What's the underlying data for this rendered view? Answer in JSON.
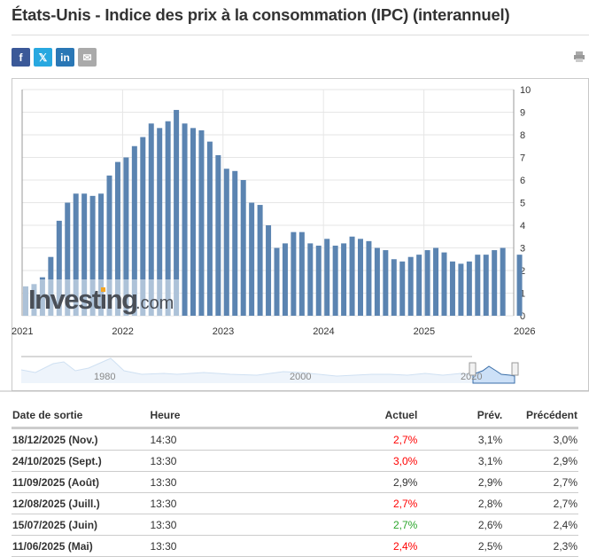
{
  "title": "États-Unis - Indice des prix à la consommation (IPC) (interannuel)",
  "share": [
    {
      "name": "facebook",
      "label": "f",
      "color": "#3b5998"
    },
    {
      "name": "twitter",
      "label": "𝕏",
      "color": "#28a8e0"
    },
    {
      "name": "linkedin",
      "label": "in",
      "color": "#2a77b5"
    },
    {
      "name": "email",
      "label": "✉",
      "color": "#aaaaaa"
    }
  ],
  "print_icon": "printer-icon",
  "chart_data": {
    "type": "bar",
    "bar_color": "#5b84b1",
    "ylim": [
      0,
      10
    ],
    "yticks": [
      "0",
      "1",
      "2",
      "3",
      "4",
      "5",
      "6",
      "7",
      "8",
      "9",
      "10"
    ],
    "xticks": [
      "2021",
      "2022",
      "2023",
      "2024",
      "2025",
      "2026"
    ],
    "grid": true,
    "watermark": "Investing.com",
    "x": [
      "2021-01",
      "2021-02",
      "2021-03",
      "2021-04",
      "2021-05",
      "2021-06",
      "2021-07",
      "2021-08",
      "2021-09",
      "2021-10",
      "2021-11",
      "2021-12",
      "2022-01",
      "2022-02",
      "2022-03",
      "2022-04",
      "2022-05",
      "2022-06",
      "2022-07",
      "2022-08",
      "2022-09",
      "2022-10",
      "2022-11",
      "2022-12",
      "2023-01",
      "2023-02",
      "2023-03",
      "2023-04",
      "2023-05",
      "2023-06",
      "2023-07",
      "2023-08",
      "2023-09",
      "2023-10",
      "2023-11",
      "2023-12",
      "2024-01",
      "2024-02",
      "2024-03",
      "2024-04",
      "2024-05",
      "2024-06",
      "2024-07",
      "2024-08",
      "2024-09",
      "2024-10",
      "2024-11",
      "2024-12",
      "2025-01",
      "2025-02",
      "2025-03",
      "2025-04",
      "2025-05",
      "2025-06",
      "2025-07",
      "2025-08",
      "2025-09",
      "2025-10",
      "2025-12"
    ],
    "values": [
      1.3,
      1.4,
      1.7,
      2.6,
      4.2,
      5.0,
      5.4,
      5.4,
      5.3,
      5.4,
      6.2,
      6.8,
      7.0,
      7.5,
      7.9,
      8.5,
      8.3,
      8.6,
      9.1,
      8.5,
      8.3,
      8.2,
      7.7,
      7.1,
      6.5,
      6.4,
      6.0,
      5.0,
      4.9,
      4.0,
      3.0,
      3.2,
      3.7,
      3.7,
      3.2,
      3.1,
      3.4,
      3.1,
      3.2,
      3.5,
      3.4,
      3.3,
      3.0,
      2.9,
      2.5,
      2.4,
      2.6,
      2.7,
      2.9,
      3.0,
      2.8,
      2.4,
      2.3,
      2.4,
      2.7,
      2.7,
      2.9,
      3.0,
      2.7
    ],
    "navigator_labels": [
      "1980",
      "2000",
      "2020"
    ]
  },
  "table": {
    "headers": [
      "Date de sortie",
      "Heure",
      "Actuel",
      "Prév.",
      "Précédent"
    ],
    "rows": [
      {
        "date": "18/12/2025 (Nov.)",
        "time": "14:30",
        "actual": "2,7%",
        "actual_color": "#ff0000",
        "forecast": "3,1%",
        "previous": "3,0%"
      },
      {
        "date": "24/10/2025 (Sept.)",
        "time": "13:30",
        "actual": "3,0%",
        "actual_color": "#ff0000",
        "forecast": "3,1%",
        "previous": "2,9%"
      },
      {
        "date": "11/09/2025 (Août)",
        "time": "13:30",
        "actual": "2,9%",
        "actual_color": "#333333",
        "forecast": "2,9%",
        "previous": "2,7%"
      },
      {
        "date": "12/08/2025 (Juill.)",
        "time": "13:30",
        "actual": "2,7%",
        "actual_color": "#ff0000",
        "forecast": "2,8%",
        "previous": "2,7%"
      },
      {
        "date": "15/07/2025 (Juin)",
        "time": "13:30",
        "actual": "2,7%",
        "actual_color": "#2aa52a",
        "forecast": "2,6%",
        "previous": "2,4%"
      },
      {
        "date": "11/06/2025 (Mai)",
        "time": "13:30",
        "actual": "2,4%",
        "actual_color": "#ff0000",
        "forecast": "2,5%",
        "previous": "2,3%"
      }
    ]
  }
}
